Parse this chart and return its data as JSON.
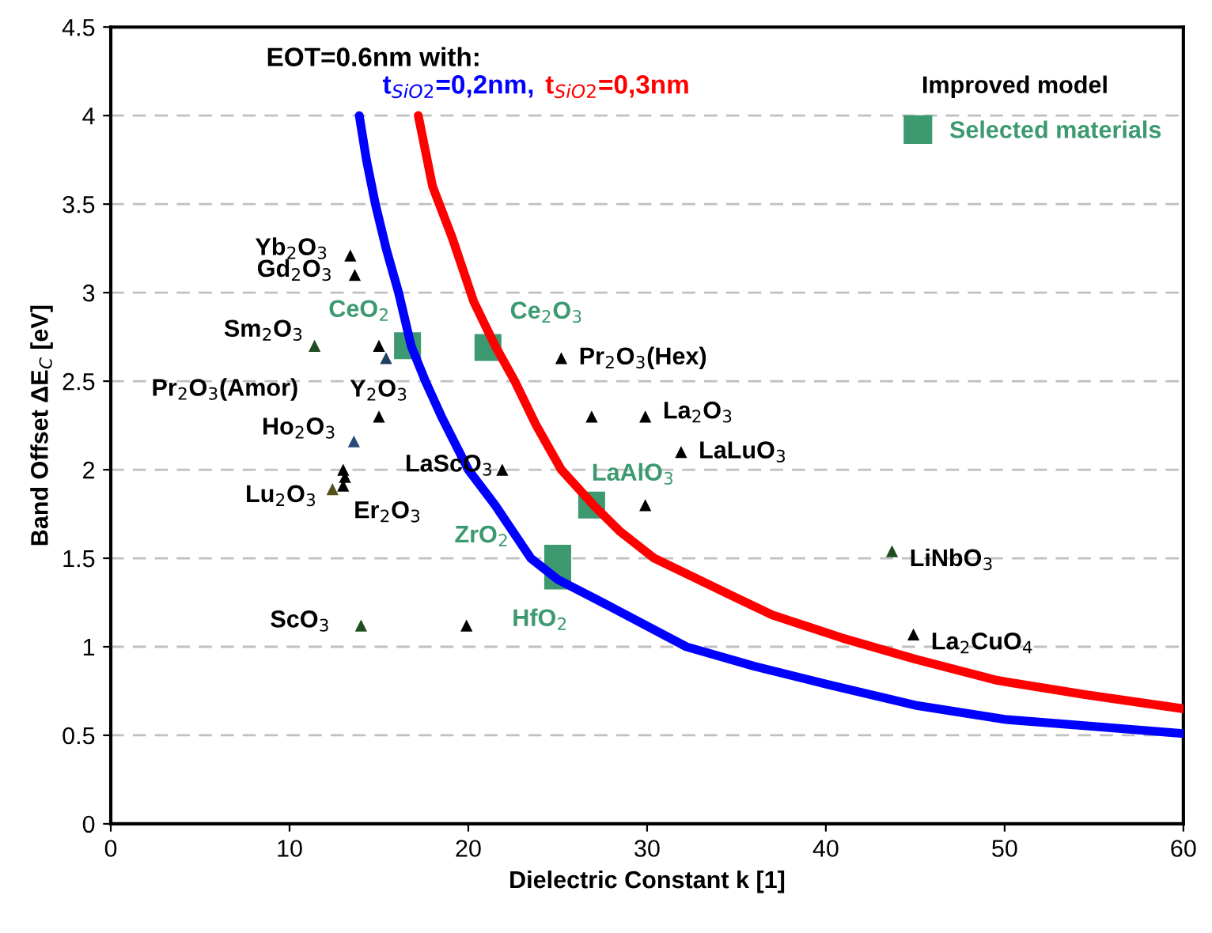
{
  "chart_data": {
    "type": "scatter",
    "xlabel": "Dielectric Constant k [1]",
    "ylabel": "Band Offset ΔE$_{C}$ [eV]",
    "annotations": [
      "EOT=0.6nm with:",
      "Improved model",
      "Pr$_{2}$O$_{3}$(Amor)",
      {
        "text": "Yb$_{2}$O$_{3}$",
        "x": 13.4,
        "y": 3.21
      },
      {
        "text": "Gd$_{2}$O$_{3}$",
        "x": 13.65,
        "y": 3.1
      },
      {
        "text": "Sm$_{2}$O$_{3}$",
        "x": 11.4,
        "y": 2.7
      },
      {
        "text": "Y$_{2}$O$_{3}$",
        "x": 15.0,
        "y": 2.3
      },
      {
        "text": "Ho$_{2}$O$_{3}$",
        "x": 13.6,
        "y": 2.16
      },
      {
        "text": "Er$_{2}$O$_{3}$",
        "x": 13.1,
        "y": 1.96
      },
      {
        "text": "Lu$_{2}$O$_{3}$",
        "x": 12.4,
        "y": 1.89
      },
      {
        "text": "LaScO$_{3}$",
        "x": 21.9,
        "y": 2.0
      },
      {
        "text": "ScO$_{3}$",
        "x": 14.0,
        "y": 1.12
      },
      {
        "text": "Pr$_{2}$O$_{3}$(Hex)",
        "x": 25.2,
        "y": 2.63
      },
      {
        "text": "La$_{2}$O$_{3}$",
        "x": 29.9,
        "y": 2.3
      },
      {
        "text": "LaLuO$_{3}$",
        "x": 31.9,
        "y": 2.1
      },
      {
        "text": "LiNbO$_{3}$",
        "x": 43.7,
        "y": 1.54
      },
      {
        "text": "La$_{2}$CuO$_{4}$",
        "x": 44.9,
        "y": 1.07
      },
      {
        "text": "CeO$_{2}$",
        "x": 16.6,
        "y": 2.7
      },
      {
        "text": "Ce$_{2}$O$_{3}$",
        "x": 21.1,
        "y": 2.69
      },
      {
        "text": "LaAlO$_{3}$",
        "x": 26.9,
        "y": 1.8
      },
      {
        "text": "ZrO$_{2}$",
        "x": 25.0,
        "y": 1.5
      },
      {
        "text": "HfO$_{2}$",
        "x": 25.0,
        "y": 1.4
      }
    ],
    "xlim": [
      0,
      60
    ],
    "ylim": [
      0,
      4.5
    ],
    "xticks": [
      0,
      10,
      20,
      30,
      40,
      50,
      60
    ],
    "yticks": [
      0,
      0.5,
      1,
      1.5,
      2,
      2.5,
      3,
      3.5,
      4,
      4.5
    ],
    "grid": "y",
    "legend": "top right",
    "series": [
      {
        "type": "line",
        "name": "t$_{SiO2}$=0,2nm,",
        "color": "#0000ff",
        "x": [
          13.9,
          14.3,
          14.8,
          15.4,
          16.1,
          16.8,
          17.6,
          18.5,
          20.0,
          21.5,
          23.5,
          25.0,
          27.5,
          32.2,
          36.0,
          40.0,
          45.0,
          50.0,
          55.0,
          60.0
        ],
        "values": [
          4.0,
          3.75,
          3.5,
          3.25,
          3.0,
          2.7,
          2.5,
          2.3,
          2.0,
          1.8,
          1.5,
          1.38,
          1.25,
          1.0,
          0.89,
          0.79,
          0.67,
          0.59,
          0.55,
          0.51
        ]
      },
      {
        "type": "line",
        "name": "t$_{SiO2}$=0,3nm",
        "color": "#ff0000",
        "x": [
          17.2,
          18.0,
          19.1,
          20.3,
          21.5,
          22.6,
          23.8,
          25.2,
          27.0,
          28.5,
          30.4,
          34.5,
          37.0,
          40.9,
          45.0,
          49.6,
          54.5,
          60.0
        ],
        "values": [
          4.0,
          3.6,
          3.31,
          2.95,
          2.7,
          2.5,
          2.25,
          2.0,
          1.8,
          1.65,
          1.5,
          1.3,
          1.18,
          1.05,
          0.93,
          0.81,
          0.73,
          0.65
        ]
      },
      {
        "marker": "triangle",
        "color": "#000000",
        "x": [
          13.4,
          13.65,
          11.4,
          15.0,
          15.4,
          15.0,
          13.6,
          13.0,
          13.1,
          13.0,
          12.4,
          21.9,
          14.0,
          19.9,
          25.2,
          26.9,
          29.9,
          31.9,
          29.9,
          43.7,
          44.9
        ],
        "values": [
          3.21,
          3.1,
          2.7,
          2.7,
          2.63,
          2.3,
          2.16,
          2.0,
          1.96,
          1.91,
          1.89,
          2.0,
          1.12,
          1.12,
          2.63,
          2.3,
          2.3,
          2.1,
          1.8,
          1.54,
          1.07
        ],
        "colors": [
          "#000000",
          "#000000",
          "#1e4d1e",
          "#000000",
          "#1f3f5f",
          "#000000",
          "#2a4a7a",
          "#000000",
          "#000000",
          "#000000",
          "#55501a",
          "#000000",
          "#1e4d1e",
          "#000000",
          "#000000",
          "#000000",
          "#000000",
          "#000000",
          "#000000",
          "#1e4d1e",
          "#000000"
        ]
      },
      {
        "marker": "square",
        "name": "Selected materials",
        "color": "#3d9970",
        "x": [
          16.6,
          21.1,
          26.9,
          25.0,
          25.0
        ],
        "values": [
          2.7,
          2.69,
          1.8,
          1.5,
          1.4
        ]
      }
    ]
  }
}
